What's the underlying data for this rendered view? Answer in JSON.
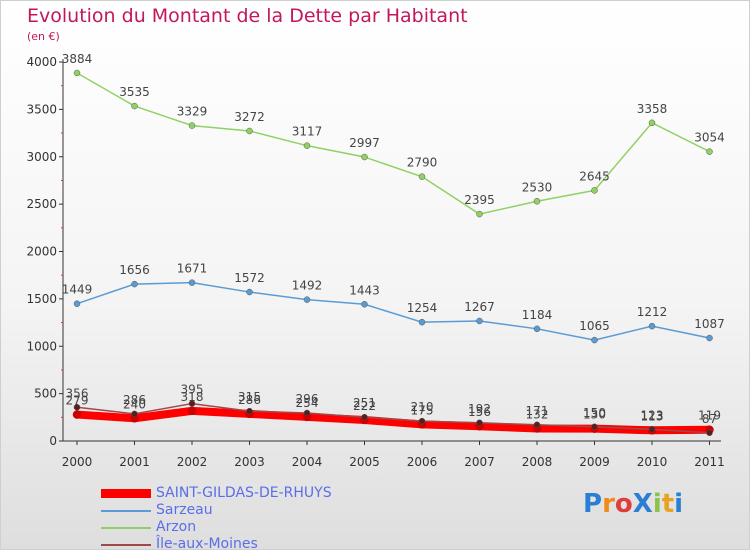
{
  "chart_data": {
    "type": "line",
    "title": "Evolution du Montant de la Dette par Habitant",
    "subtitle": "(en €)",
    "x": [
      "2000",
      "2001",
      "2002",
      "2003",
      "2004",
      "2005",
      "2006",
      "2007",
      "2008",
      "2009",
      "2010",
      "2011"
    ],
    "ylim": [
      0,
      4000
    ],
    "yticks": [
      0,
      500,
      1000,
      1500,
      2000,
      2500,
      3000,
      3500,
      4000
    ],
    "grid": false,
    "legend_position": "bottom-left",
    "series": [
      {
        "name": "SAINT-GILDAS-DE-RHUYS",
        "color": "#ff0000",
        "values": [
          279,
          240,
          318,
          286,
          254,
          222,
          175,
          156,
          132,
          130,
          113,
          119
        ]
      },
      {
        "name": "Sarzeau",
        "color": "#5b9bd5",
        "values": [
          1449,
          1656,
          1671,
          1572,
          1492,
          1443,
          1254,
          1267,
          1184,
          1065,
          1212,
          1087
        ]
      },
      {
        "name": "Arzon",
        "color": "#8fd163",
        "values": [
          3884,
          3535,
          3329,
          3272,
          3117,
          2997,
          2790,
          2395,
          2530,
          2645,
          3358,
          3054
        ]
      },
      {
        "name": "Île-aux-Moines",
        "color": "#9e4a4a",
        "values": [
          356,
          286,
          395,
          315,
          296,
          251,
          210,
          192,
          171,
          150,
          123,
          87
        ]
      }
    ]
  },
  "logo": {
    "text": "ProXiti"
  }
}
